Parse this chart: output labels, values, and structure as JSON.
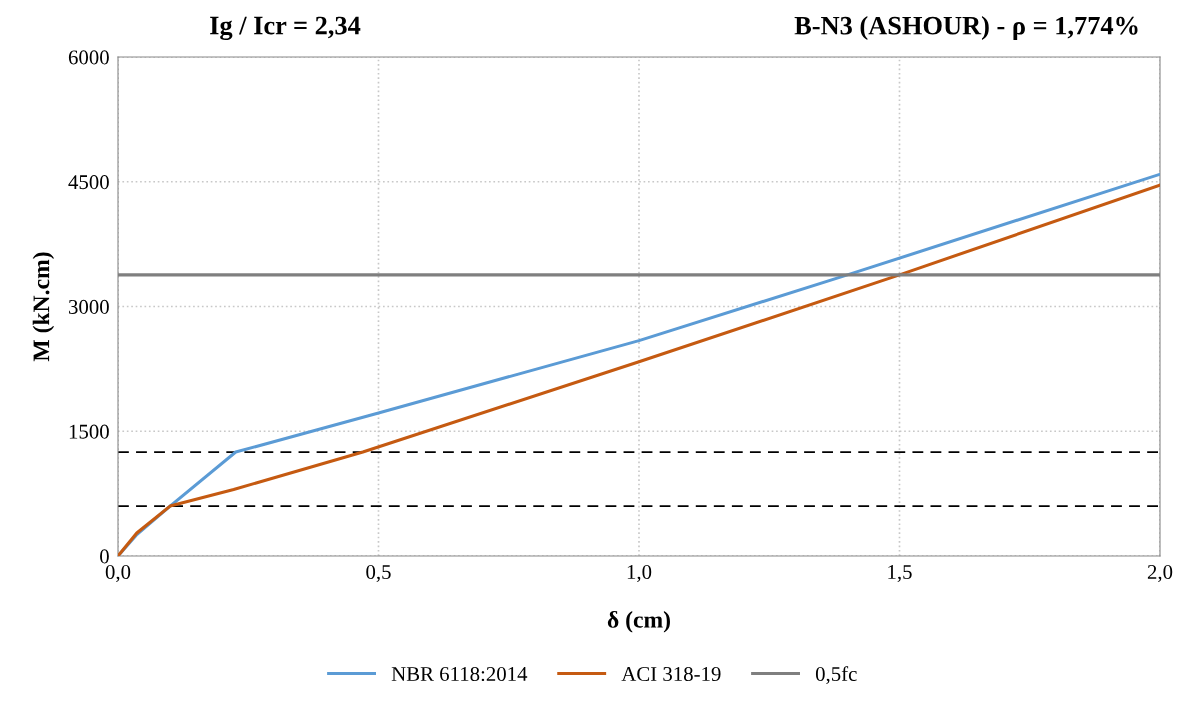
{
  "chart_data": {
    "type": "line",
    "title": "Ig / Icr = 2,34",
    "subtitle": "B-N3 (ASHOUR) - ρ = 1,774%",
    "xlabel": "δ (cm)",
    "ylabel": "M (kN.cm)",
    "xlim": [
      0,
      2
    ],
    "xticks": [
      {
        "value": 0,
        "label": "0,0"
      },
      {
        "value": 0.5,
        "label": "0,5"
      },
      {
        "value": 1,
        "label": "1,0"
      },
      {
        "value": 1.5,
        "label": "1,5"
      },
      {
        "value": 2,
        "label": "2,0"
      }
    ],
    "ylim": [
      0,
      6000
    ],
    "yticks": [
      0,
      1500,
      3000,
      4500,
      6000
    ],
    "grid": true,
    "legend": "bottom",
    "marker": "none",
    "line_style": "solid",
    "series": [
      {
        "name": "NBR 6118:2014",
        "color": "#5b9bd5",
        "x": [
          0,
          0.035,
          0.1,
          0.226,
          0.5,
          1.0,
          1.4,
          2.0
        ],
        "values": [
          0,
          250,
          600,
          1250,
          1720,
          2590,
          3380,
          4590
        ]
      },
      {
        "name": "ACI 318-19",
        "color": "#c55a11",
        "x": [
          0,
          0.036,
          0.1,
          0.222,
          0.47,
          1.0,
          1.5,
          2.0
        ],
        "values": [
          0,
          276,
          600,
          800,
          1250,
          2335,
          3380,
          4460
        ]
      },
      {
        "name": "0,5fc",
        "color": "#7f7f7f",
        "x": [
          0,
          2.0
        ],
        "values": [
          3380,
          3380
        ]
      }
    ],
    "ref_lines": [
      {
        "axis": "y",
        "value": 1250,
        "color": "#000000",
        "line_style": "dashed"
      },
      {
        "axis": "y",
        "value": 600,
        "color": "#000000",
        "line_style": "dashed"
      }
    ]
  }
}
